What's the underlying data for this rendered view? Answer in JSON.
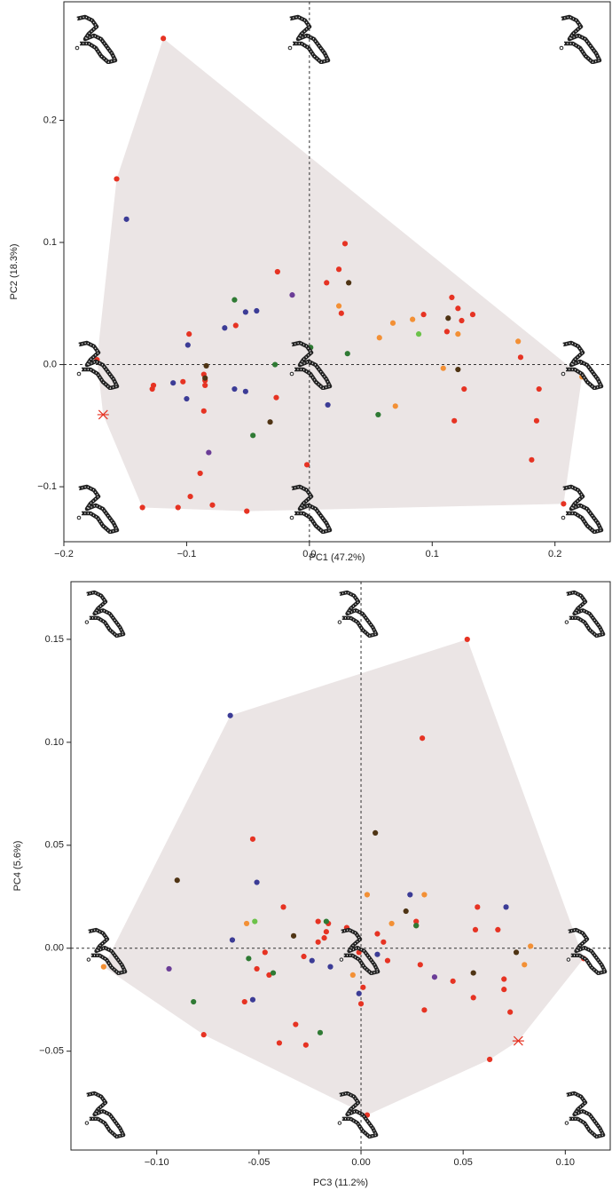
{
  "chart_data": [
    {
      "type": "scatter",
      "xlabel": "PC1 (47.2%)",
      "ylabel": "PC2 (18.3%)",
      "xlim": [
        -0.2,
        0.245
      ],
      "ylim": [
        -0.145,
        0.297
      ],
      "xticks": [
        {
          "value": -0.2,
          "label": "−0.2"
        },
        {
          "value": -0.1,
          "label": "−0.1"
        },
        {
          "value": 0,
          "label": "0.0"
        },
        0.1,
        0.2
      ],
      "yticks": [
        {
          "value": -0.1,
          "label": "−0.1"
        },
        {
          "value": 0,
          "label": "0.0"
        },
        0.1,
        0.2
      ],
      "hull_color": "#ebe5e5",
      "series": [
        {
          "color": "#e63323",
          "x": [
            -0.119,
            -0.157,
            -0.173,
            -0.127,
            -0.128,
            -0.103,
            -0.098,
            -0.086,
            -0.085,
            -0.085,
            -0.086,
            -0.089,
            -0.097,
            -0.107,
            -0.079,
            -0.136,
            -0.051,
            -0.06,
            -0.026,
            -0.027,
            -0.002,
            0.014,
            0.024,
            0.029,
            0.026,
            0.093,
            0.116,
            0.121,
            0.124,
            0.112,
            0.126,
            0.133,
            0.118,
            0.172,
            0.187,
            0.185,
            0.181,
            0.207
          ],
          "values": [
            0.267,
            0.152,
            0.004,
            -0.017,
            -0.02,
            -0.014,
            0.025,
            -0.008,
            -0.013,
            -0.017,
            -0.038,
            -0.089,
            -0.108,
            -0.117,
            -0.115,
            -0.117,
            -0.12,
            0.032,
            0.076,
            -0.027,
            -0.082,
            0.067,
            0.078,
            0.099,
            0.042,
            0.041,
            0.055,
            0.046,
            0.036,
            0.027,
            -0.02,
            0.041,
            -0.046,
            0.006,
            -0.02,
            -0.046,
            -0.078,
            -0.114
          ]
        },
        {
          "color": "#3c3c96",
          "x": [
            -0.149,
            -0.111,
            -0.099,
            -0.1,
            -0.069,
            -0.052,
            -0.043,
            -0.061,
            -0.052,
            0.015
          ],
          "values": [
            0.119,
            -0.015,
            0.016,
            -0.028,
            0.03,
            0.043,
            0.044,
            -0.02,
            -0.022,
            -0.033
          ]
        },
        {
          "color": "#2f7a34",
          "x": [
            -0.061,
            -0.028,
            0.001,
            0.031,
            -0.046,
            0.056
          ],
          "values": [
            0.053,
            0.0,
            0.014,
            0.009,
            -0.058,
            -0.041
          ]
        },
        {
          "color": "#6cc24a",
          "x": [
            0.089
          ],
          "values": [
            0.025
          ]
        },
        {
          "color": "#f39035",
          "x": [
            0.024,
            0.057,
            0.068,
            0.084,
            0.121,
            0.109,
            0.17,
            0.07,
            0.222
          ],
          "values": [
            0.048,
            0.022,
            0.034,
            0.037,
            0.025,
            -0.003,
            0.019,
            -0.034,
            -0.01
          ]
        },
        {
          "color": "#4f3414",
          "x": [
            -0.084,
            -0.085,
            0.032,
            0.113,
            0.121,
            -0.032
          ],
          "values": [
            -0.001,
            -0.011,
            0.067,
            0.038,
            -0.004,
            -0.047
          ]
        },
        {
          "color": "#6b3d97",
          "x": [
            -0.082,
            -0.014
          ],
          "values": [
            -0.072,
            0.057
          ]
        },
        {
          "color": "#e63323",
          "marker": "x",
          "x": [
            -0.168
          ],
          "values": [
            -0.041
          ]
        }
      ]
    },
    {
      "type": "scatter",
      "xlabel": "PC3 (11.2%)",
      "ylabel": "PC4 (5.6%)",
      "xlim": [
        -0.142,
        0.122
      ],
      "ylim": [
        -0.098,
        0.178
      ],
      "xticks": [
        {
          "value": -0.1,
          "label": "−0.10"
        },
        -0.05,
        {
          "value": 0,
          "label": "0.00"
        },
        0.05,
        {
          "value": 0.1,
          "label": "0.10"
        }
      ],
      "yticks": [
        {
          "value": -0.05,
          "label": "−0.05"
        },
        {
          "value": 0,
          "label": "0.00"
        },
        0.05,
        {
          "value": 0.1,
          "label": "0.10"
        },
        0.15
      ],
      "hull_color": "#ebe5e5",
      "series": [
        {
          "color": "#e63323",
          "x": [
            0.052,
            0.03,
            -0.053,
            -0.077,
            -0.038,
            -0.047,
            -0.045,
            -0.051,
            -0.057,
            -0.028,
            -0.021,
            -0.021,
            -0.018,
            -0.017,
            -0.016,
            -0.032,
            -0.04,
            -0.027,
            -0.007,
            -0.001,
            0.001,
            0.0,
            0.003,
            0.008,
            0.011,
            0.013,
            0.027,
            0.027,
            0.031,
            0.029,
            0.045,
            0.057,
            0.056,
            0.055,
            0.067,
            0.07,
            0.07,
            0.073,
            0.063,
            0.109
          ],
          "values": [
            0.15,
            0.102,
            0.053,
            -0.042,
            0.02,
            -0.002,
            -0.013,
            -0.01,
            -0.026,
            -0.004,
            0.003,
            0.013,
            0.005,
            0.008,
            0.012,
            -0.037,
            -0.046,
            -0.047,
            0.01,
            -0.002,
            -0.019,
            -0.027,
            -0.081,
            0.007,
            0.003,
            -0.006,
            0.013,
            0.011,
            -0.03,
            -0.008,
            -0.016,
            0.02,
            0.009,
            -0.024,
            0.009,
            -0.015,
            -0.02,
            -0.031,
            -0.054,
            -0.005
          ]
        },
        {
          "color": "#3c3c96",
          "x": [
            -0.064,
            -0.051,
            -0.063,
            -0.024,
            -0.015,
            -0.001,
            0.024,
            0.008,
            -0.053,
            0.071
          ],
          "values": [
            0.113,
            0.032,
            0.004,
            -0.006,
            -0.009,
            -0.022,
            0.026,
            -0.003,
            -0.025,
            0.02
          ]
        },
        {
          "color": "#2f7a34",
          "x": [
            -0.055,
            -0.043,
            -0.082,
            -0.02,
            -0.017,
            0.027
          ],
          "values": [
            -0.005,
            -0.012,
            -0.026,
            -0.041,
            0.013,
            0.011
          ]
        },
        {
          "color": "#6cc24a",
          "x": [
            -0.052
          ],
          "values": [
            0.013
          ]
        },
        {
          "color": "#f39035",
          "x": [
            -0.126,
            -0.056,
            0.003,
            0.015,
            0.031,
            0.083,
            0.08,
            -0.004
          ],
          "values": [
            -0.009,
            0.012,
            0.026,
            0.012,
            0.026,
            0.001,
            -0.008,
            -0.013
          ]
        },
        {
          "color": "#4f3414",
          "x": [
            -0.09,
            0.007,
            -0.033,
            0.022,
            0.076,
            0.055
          ],
          "values": [
            0.033,
            0.056,
            0.006,
            0.018,
            -0.002,
            -0.012
          ]
        },
        {
          "color": "#6b3d97",
          "x": [
            -0.094,
            0.036
          ],
          "values": [
            -0.01,
            -0.014
          ]
        },
        {
          "color": "#e63323",
          "marker": "x",
          "x": [
            0.077
          ],
          "values": [
            -0.045
          ]
        }
      ]
    }
  ]
}
